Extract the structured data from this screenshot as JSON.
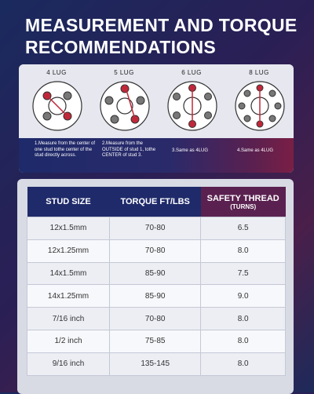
{
  "title": {
    "line1": "MEASUREMENT AND TORQUE",
    "line2": "RECOMMENDATIONS"
  },
  "lugs": [
    {
      "label": "4 LUG",
      "note": "1.Measure from the center of one stud tothe center of the stud directly across."
    },
    {
      "label": "5 LUG",
      "note": "2.Measure from the OUTSIDE of stud 1, tothe CENTER of stud 3."
    },
    {
      "label": "6 LUG",
      "note": "3.Same as 4LUG"
    },
    {
      "label": "8 LUG",
      "note": "4.Same as 4LUG"
    }
  ],
  "table": {
    "headers": [
      "STUD SIZE",
      "TORQUE FT/LBS",
      "SAFETY THREAD",
      "(TURNS)"
    ],
    "rows": [
      [
        "12x1.5mm",
        "70-80",
        "6.5"
      ],
      [
        "12x1.25mm",
        "70-80",
        "8.0"
      ],
      [
        "14x1.5mm",
        "85-90",
        "7.5"
      ],
      [
        "14x1.25mm",
        "85-90",
        "9.0"
      ],
      [
        "7/16 inch",
        "70-80",
        "8.0"
      ],
      [
        "1/2 inch",
        "75-85",
        "8.0"
      ],
      [
        "9/16 inch",
        "135-145",
        "8.0"
      ]
    ]
  },
  "colors": {
    "accent_red": "#c0283a",
    "navy": "#1f2a6a",
    "plum": "#5a2150"
  }
}
